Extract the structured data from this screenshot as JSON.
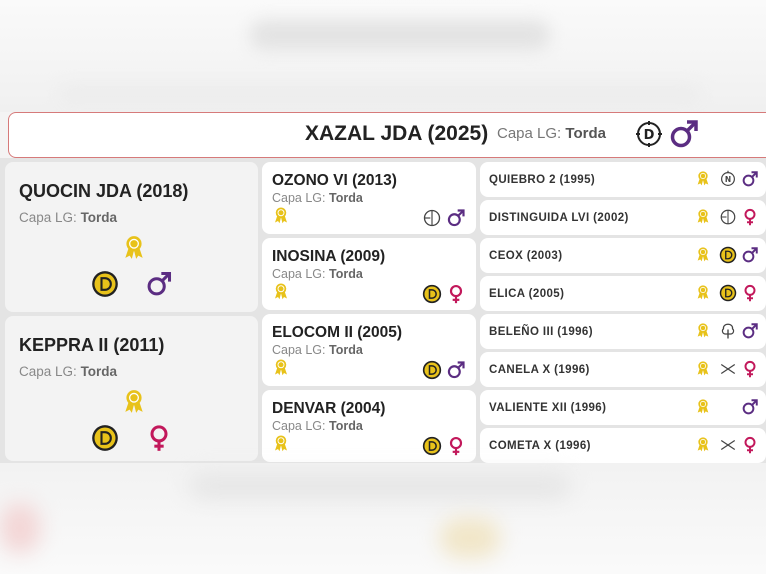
{
  "header": {
    "name": "XAZAL JDA (2025)",
    "capa_label": "Capa LG:",
    "capa_value": "Torda",
    "icon": "d-coin-icon",
    "sex_icon": "male-icon"
  },
  "generation1": [
    {
      "name": "QUOCIN JDA (2018)",
      "capa_label": "Capa LG:",
      "capa_value": "Torda",
      "icons": [
        "award-ribbon-icon",
        "d-coin-icon",
        "male-icon"
      ]
    },
    {
      "name": "KEPPRA II (2011)",
      "capa_label": "Capa LG:",
      "capa_value": "Torda",
      "icons": [
        "award-ribbon-icon",
        "d-coin-icon",
        "female-icon"
      ]
    }
  ],
  "generation2": [
    {
      "name": "OZONO VI (2013)",
      "capa_label": "Capa LG:",
      "capa_value": "Torda",
      "icons": [
        "award-ribbon-icon",
        "crosshair-icon",
        "male-icon"
      ]
    },
    {
      "name": "INOSINA (2009)",
      "capa_label": "Capa LG:",
      "capa_value": "Torda",
      "icons": [
        "award-ribbon-icon",
        "d-coin-icon",
        "female-icon"
      ]
    },
    {
      "name": "ELOCOM II (2005)",
      "capa_label": "Capa LG:",
      "capa_value": "Torda",
      "icons": [
        "award-ribbon-icon",
        "d-coin-icon",
        "male-icon"
      ]
    },
    {
      "name": "DENVAR (2004)",
      "capa_label": "Capa LG:",
      "capa_value": "Torda",
      "icons": [
        "award-ribbon-icon",
        "d-coin-icon",
        "female-icon"
      ]
    }
  ],
  "generation3": [
    {
      "name": "QUIEBRO 2 (1995)",
      "icons": [
        "award-ribbon-icon",
        "n-badge-icon",
        "male-icon"
      ]
    },
    {
      "name": "DISTINGUIDA LVI (2002)",
      "icons": [
        "award-ribbon-icon",
        "crosshair-icon",
        "female-icon"
      ]
    },
    {
      "name": "CEOX (2003)",
      "icons": [
        "award-ribbon-icon",
        "d-coin-icon",
        "male-icon"
      ]
    },
    {
      "name": "ELICA (2005)",
      "icons": [
        "award-ribbon-icon",
        "d-coin-icon",
        "female-icon"
      ]
    },
    {
      "name": "BELEÑO III (1996)",
      "icons": [
        "award-ribbon-icon",
        "tree-icon",
        "male-icon"
      ]
    },
    {
      "name": "CANELA X (1996)",
      "icons": [
        "award-ribbon-icon",
        "cross-arrows-icon",
        "female-icon"
      ]
    },
    {
      "name": "VALIENTE XII (1996)",
      "icons": [
        "award-ribbon-icon",
        "male-icon"
      ]
    },
    {
      "name": "COMETA X (1996)",
      "icons": [
        "award-ribbon-icon",
        "cross-arrows-icon",
        "female-icon"
      ]
    }
  ],
  "colors": {
    "male": "#5b2d82",
    "female": "#c2185b",
    "gold": "#e8c21a",
    "header_border": "#d67a7a"
  }
}
